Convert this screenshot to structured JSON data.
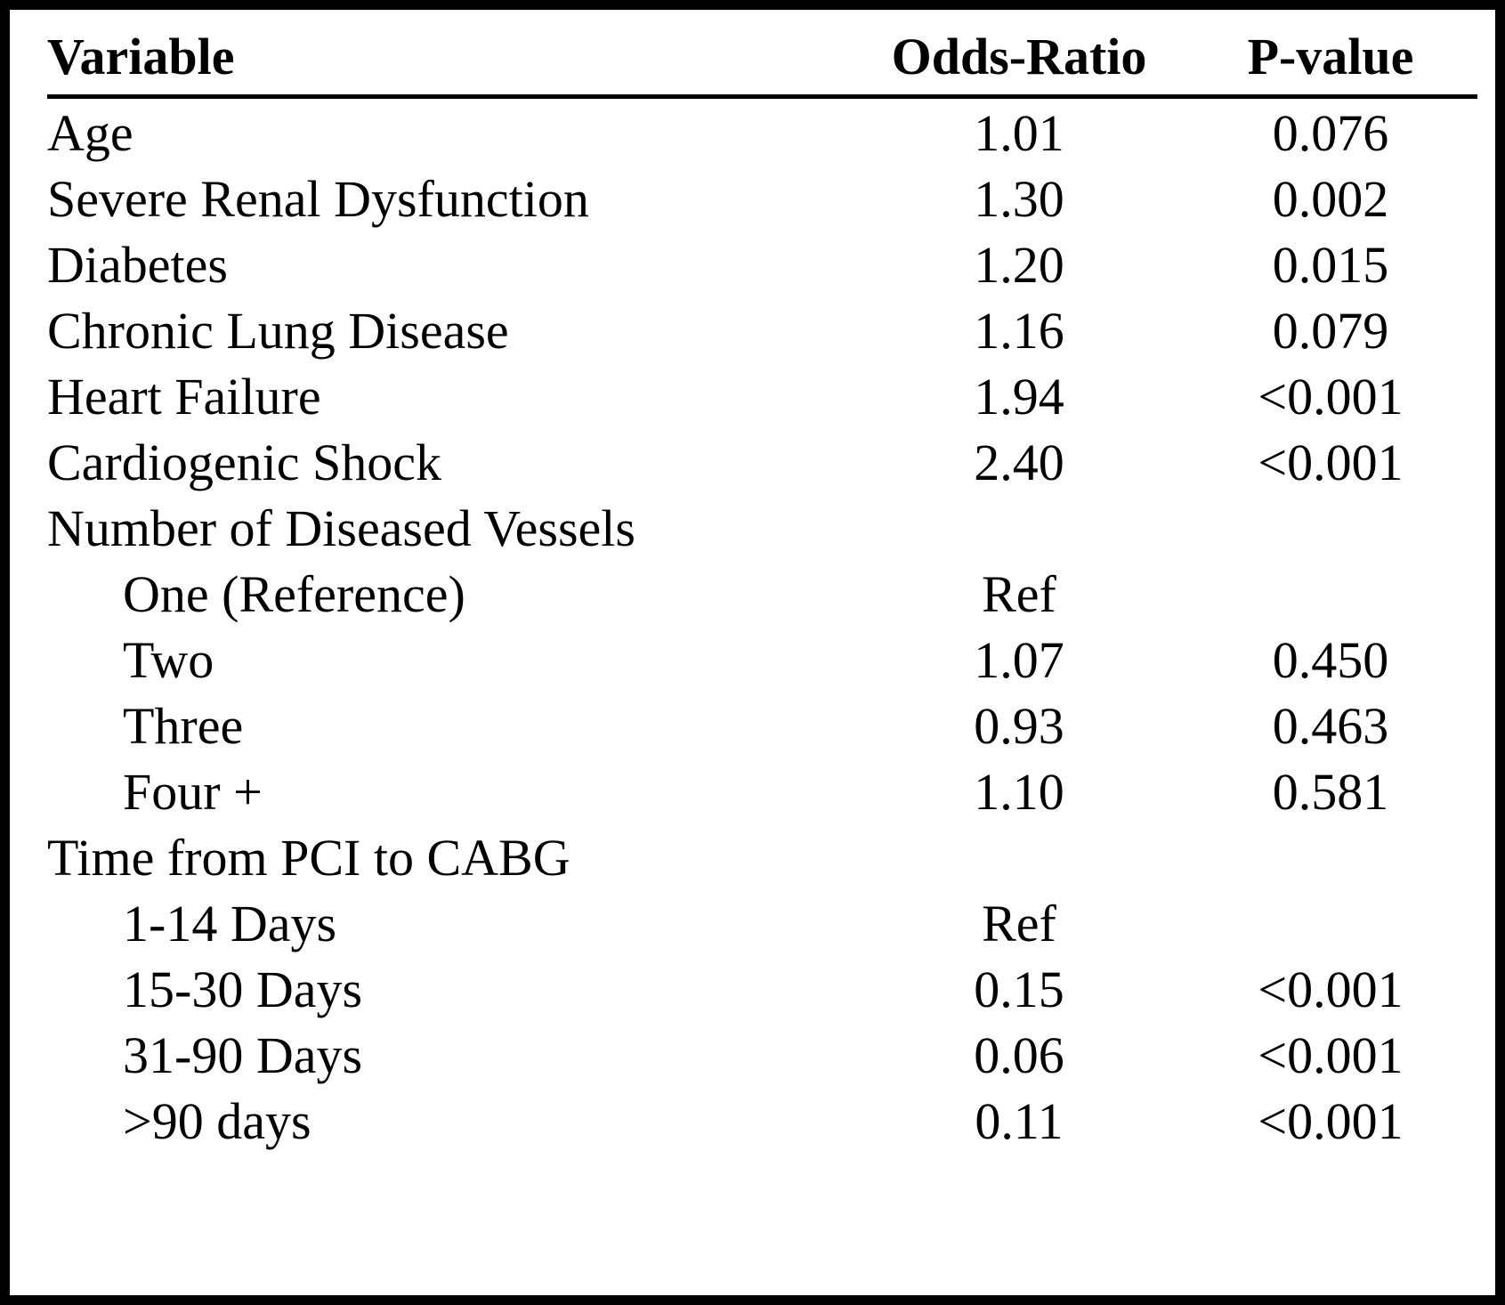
{
  "table": {
    "columns": [
      "Variable",
      "Odds-Ratio",
      "P-value"
    ],
    "rows": [
      {
        "variable": "Age",
        "indent": false,
        "odds_ratio": "1.01",
        "p_value": "0.076"
      },
      {
        "variable": "Severe Renal Dysfunction",
        "indent": false,
        "odds_ratio": "1.30",
        "p_value": "0.002"
      },
      {
        "variable": "Diabetes",
        "indent": false,
        "odds_ratio": "1.20",
        "p_value": "0.015"
      },
      {
        "variable": "Chronic Lung Disease",
        "indent": false,
        "odds_ratio": "1.16",
        "p_value": "0.079"
      },
      {
        "variable": "Heart Failure",
        "indent": false,
        "odds_ratio": "1.94",
        "p_value": "<0.001"
      },
      {
        "variable": "Cardiogenic Shock",
        "indent": false,
        "odds_ratio": "2.40",
        "p_value": "<0.001"
      },
      {
        "variable": "Number of Diseased Vessels",
        "indent": false,
        "odds_ratio": "",
        "p_value": ""
      },
      {
        "variable": "One (Reference)",
        "indent": true,
        "odds_ratio": "Ref",
        "p_value": ""
      },
      {
        "variable": "Two",
        "indent": true,
        "odds_ratio": "1.07",
        "p_value": "0.450"
      },
      {
        "variable": "Three",
        "indent": true,
        "odds_ratio": "0.93",
        "p_value": "0.463"
      },
      {
        "variable": "Four +",
        "indent": true,
        "odds_ratio": "1.10",
        "p_value": "0.581"
      },
      {
        "variable": "Time from PCI to CABG",
        "indent": false,
        "odds_ratio": "",
        "p_value": ""
      },
      {
        "variable": "1-14 Days",
        "indent": true,
        "odds_ratio": "Ref",
        "p_value": ""
      },
      {
        "variable": "15-30 Days",
        "indent": true,
        "odds_ratio": "0.15",
        "p_value": "<0.001"
      },
      {
        "variable": "31-90 Days",
        "indent": true,
        "odds_ratio": "0.06",
        "p_value": "<0.001"
      },
      {
        "variable": ">90 days",
        "indent": true,
        "odds_ratio": "0.11",
        "p_value": "<0.001"
      }
    ],
    "colors": {
      "text": "#000000",
      "background": "#ffffff",
      "frame": "#000000"
    }
  }
}
